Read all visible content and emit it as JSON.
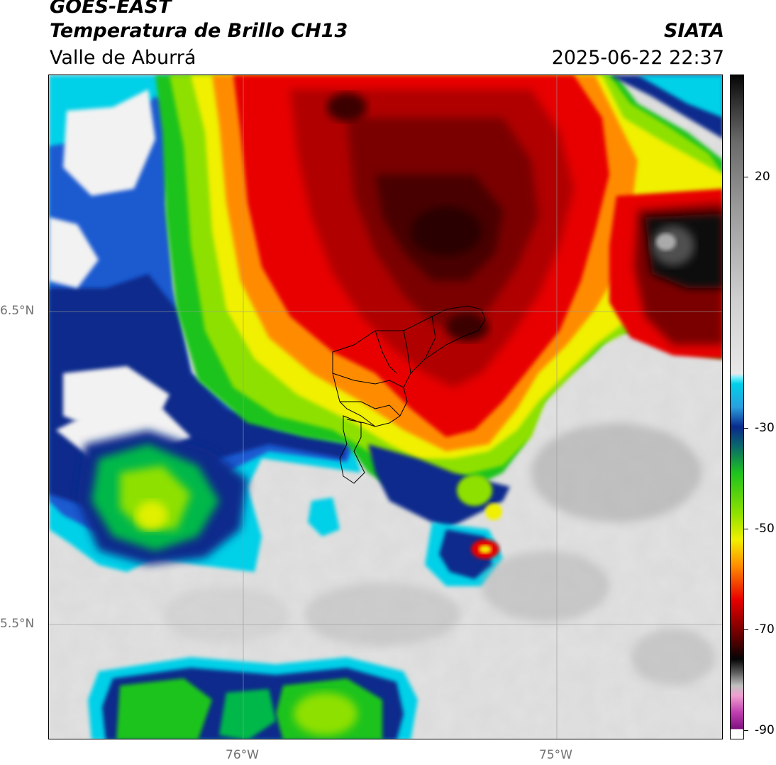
{
  "header": {
    "satellite": "GOES-EAST",
    "product": "Temperatura de Brillo CH13",
    "organization": "SIATA",
    "region": "Valle de Aburrá",
    "datetime": "2025-06-22 22:37"
  },
  "axes": {
    "lat_labels": [
      "6.5°N",
      "5.5°N"
    ],
    "lon_labels": [
      "76°W",
      "75°W"
    ]
  },
  "colorbar": {
    "tick_labels": [
      "20",
      "-30",
      "-50",
      "-70",
      "-90"
    ],
    "colors": {
      "warm_gray_dark": "#303030",
      "gray_mid": "#9a9a9a",
      "gray_light": "#e8e8e8",
      "cyan": "#00d0e8",
      "blue_dark": "#0a2a8c",
      "green": "#1ec31e",
      "yellow": "#f0f000",
      "orange": "#ff8c00",
      "red": "#e80000",
      "dark_red": "#5a0000",
      "black": "#050505",
      "magenta": "#c040b0"
    }
  },
  "colors": {
    "background_clear": "#e4e4e4",
    "grid": "#9a9a9a",
    "boundary": "#000000"
  }
}
